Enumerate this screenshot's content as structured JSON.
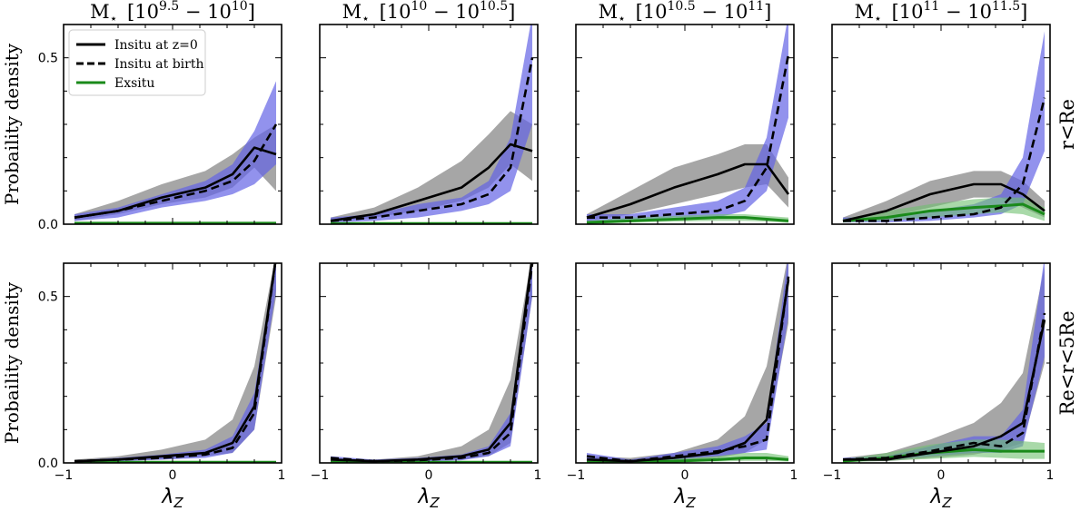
{
  "chart_data": {
    "type": "line",
    "xlabel": "λ",
    "xlabel_sub": "Z",
    "ylabel": "Probaility density",
    "xlim": [
      -1,
      1
    ],
    "ylim": [
      0,
      0.6
    ],
    "xticks": [
      -1,
      0,
      1
    ],
    "xtick_labels": [
      "−1",
      "0",
      "1"
    ],
    "yticks": [
      0,
      0.5
    ],
    "ytick_labels": [
      "0.0",
      "0.5"
    ],
    "columns": [
      {
        "title_base": "M",
        "title_sub": "⋆",
        "title_range": "[10",
        "lo_sup": "9.5",
        "dash": " − 10",
        "hi_sup": "10",
        "close": "]"
      },
      {
        "title_base": "M",
        "title_sub": "⋆",
        "title_range": "[10",
        "lo_sup": "10",
        "dash": " − 10",
        "hi_sup": "10.5",
        "close": "]"
      },
      {
        "title_base": "M",
        "title_sub": "⋆",
        "title_range": "[10",
        "lo_sup": "10.5",
        "dash": " − 10",
        "hi_sup": "11",
        "close": "]"
      },
      {
        "title_base": "M",
        "title_sub": "⋆",
        "title_range": "[10",
        "lo_sup": "11",
        "dash": " − 10",
        "hi_sup": "11.5",
        "close": "]"
      }
    ],
    "rows": [
      "r<Re",
      "Re<r<5Re"
    ],
    "legend": {
      "position": "upper-left",
      "entries": [
        {
          "label": "Insitu at z=0",
          "style": "solid",
          "color": "#000000"
        },
        {
          "label": "Insitu at birth",
          "style": "dashed",
          "color": "#000000"
        },
        {
          "label": "Exsitu",
          "style": "solid",
          "color": "#1a8a1a"
        }
      ]
    },
    "colors": {
      "insitu_z0": "#000000",
      "insitu_z0_band": "#808080",
      "birth_band": "#6464e6",
      "exsitu": "#1a8a1a",
      "exsitu_band": "#6fbf6f"
    },
    "x": [
      -0.9,
      -0.5,
      -0.1,
      0.3,
      0.55,
      0.75,
      0.95
    ],
    "panels": [
      {
        "row": 0,
        "col": 0,
        "insitu_z0": [
          0.02,
          0.04,
          0.08,
          0.11,
          0.15,
          0.23,
          0.21
        ],
        "insitu_z0_lo": [
          0.01,
          0.03,
          0.06,
          0.08,
          0.11,
          0.17,
          0.1
        ],
        "insitu_z0_hi": [
          0.03,
          0.07,
          0.12,
          0.16,
          0.21,
          0.26,
          0.3
        ],
        "insitu_birth": [
          0.02,
          0.04,
          0.07,
          0.1,
          0.13,
          0.19,
          0.3
        ],
        "birth_lo": [
          0.01,
          0.02,
          0.05,
          0.07,
          0.09,
          0.12,
          0.18
        ],
        "birth_hi": [
          0.03,
          0.05,
          0.09,
          0.13,
          0.18,
          0.28,
          0.43
        ],
        "exsitu": [
          0.003,
          0.003,
          0.003,
          0.003,
          0.003,
          0.003,
          0.003
        ],
        "exsitu_lo": [
          0.0,
          0.0,
          0.0,
          0.0,
          0.0,
          0.0,
          0.0
        ],
        "exsitu_hi": [
          0.006,
          0.006,
          0.006,
          0.006,
          0.006,
          0.006,
          0.006
        ]
      },
      {
        "row": 0,
        "col": 1,
        "insitu_z0": [
          0.01,
          0.03,
          0.07,
          0.11,
          0.17,
          0.24,
          0.22
        ],
        "insitu_z0_lo": [
          0.005,
          0.02,
          0.04,
          0.07,
          0.11,
          0.18,
          0.13
        ],
        "insitu_z0_hi": [
          0.02,
          0.05,
          0.11,
          0.19,
          0.27,
          0.34,
          0.3
        ],
        "insitu_birth": [
          0.01,
          0.02,
          0.04,
          0.06,
          0.09,
          0.17,
          0.5
        ],
        "birth_lo": [
          0.005,
          0.01,
          0.02,
          0.04,
          0.06,
          0.1,
          0.3
        ],
        "birth_hi": [
          0.02,
          0.03,
          0.06,
          0.08,
          0.13,
          0.26,
          0.66
        ],
        "exsitu": [
          0.002,
          0.002,
          0.002,
          0.002,
          0.002,
          0.002,
          0.002
        ],
        "exsitu_lo": [
          0.0,
          0.0,
          0.0,
          0.0,
          0.0,
          0.0,
          0.0
        ],
        "exsitu_hi": [
          0.004,
          0.004,
          0.004,
          0.004,
          0.004,
          0.004,
          0.004
        ]
      },
      {
        "row": 0,
        "col": 2,
        "insitu_z0": [
          0.02,
          0.06,
          0.11,
          0.15,
          0.18,
          0.18,
          0.09
        ],
        "insitu_z0_lo": [
          0.01,
          0.03,
          0.06,
          0.09,
          0.11,
          0.12,
          0.05
        ],
        "insitu_z0_hi": [
          0.03,
          0.1,
          0.17,
          0.21,
          0.24,
          0.24,
          0.14
        ],
        "insitu_birth": [
          0.02,
          0.02,
          0.03,
          0.04,
          0.07,
          0.17,
          0.51
        ],
        "birth_lo": [
          0.01,
          0.01,
          0.02,
          0.02,
          0.04,
          0.1,
          0.32
        ],
        "birth_hi": [
          0.03,
          0.03,
          0.05,
          0.07,
          0.11,
          0.26,
          0.66
        ],
        "exsitu": [
          0.005,
          0.01,
          0.015,
          0.02,
          0.02,
          0.015,
          0.01
        ],
        "exsitu_lo": [
          0.0,
          0.005,
          0.008,
          0.01,
          0.01,
          0.008,
          0.004
        ],
        "exsitu_hi": [
          0.01,
          0.02,
          0.025,
          0.03,
          0.03,
          0.025,
          0.02
        ]
      },
      {
        "row": 0,
        "col": 3,
        "insitu_z0": [
          0.01,
          0.04,
          0.09,
          0.12,
          0.12,
          0.09,
          0.04
        ],
        "insitu_z0_lo": [
          0.005,
          0.02,
          0.05,
          0.08,
          0.08,
          0.05,
          0.02
        ],
        "insitu_z0_hi": [
          0.02,
          0.07,
          0.13,
          0.16,
          0.16,
          0.13,
          0.07
        ],
        "insitu_birth": [
          0.01,
          0.01,
          0.02,
          0.03,
          0.05,
          0.12,
          0.38
        ],
        "birth_lo": [
          0.005,
          0.005,
          0.01,
          0.02,
          0.03,
          0.06,
          0.22
        ],
        "birth_hi": [
          0.02,
          0.02,
          0.04,
          0.06,
          0.09,
          0.2,
          0.58
        ],
        "exsitu": [
          0.01,
          0.02,
          0.04,
          0.05,
          0.055,
          0.06,
          0.03
        ],
        "exsitu_lo": [
          0.005,
          0.01,
          0.02,
          0.03,
          0.035,
          0.03,
          0.01
        ],
        "exsitu_hi": [
          0.015,
          0.04,
          0.06,
          0.075,
          0.08,
          0.08,
          0.05
        ]
      },
      {
        "row": 1,
        "col": 0,
        "insitu_z0": [
          0.005,
          0.01,
          0.02,
          0.03,
          0.06,
          0.17,
          0.62
        ],
        "insitu_z0_lo": [
          0.003,
          0.005,
          0.01,
          0.02,
          0.03,
          0.1,
          0.5
        ],
        "insitu_z0_hi": [
          0.01,
          0.02,
          0.04,
          0.07,
          0.13,
          0.29,
          0.7
        ],
        "insitu_birth": [
          0.005,
          0.01,
          0.015,
          0.025,
          0.045,
          0.15,
          0.62
        ],
        "birth_lo": [
          0.003,
          0.005,
          0.01,
          0.015,
          0.03,
          0.1,
          0.52
        ],
        "birth_hi": [
          0.008,
          0.015,
          0.025,
          0.04,
          0.08,
          0.21,
          0.7
        ],
        "exsitu": [
          0.002,
          0.002,
          0.002,
          0.002,
          0.002,
          0.002,
          0.002
        ],
        "exsitu_lo": [
          0.0,
          0.0,
          0.0,
          0.0,
          0.0,
          0.0,
          0.0
        ],
        "exsitu_hi": [
          0.005,
          0.005,
          0.005,
          0.005,
          0.005,
          0.005,
          0.005
        ]
      },
      {
        "row": 1,
        "col": 1,
        "insitu_z0": [
          0.01,
          0.005,
          0.01,
          0.02,
          0.04,
          0.12,
          0.62
        ],
        "insitu_z0_lo": [
          0.005,
          0.003,
          0.005,
          0.01,
          0.02,
          0.06,
          0.5
        ],
        "insitu_z0_hi": [
          0.015,
          0.01,
          0.02,
          0.05,
          0.1,
          0.25,
          0.7
        ],
        "insitu_birth": [
          0.015,
          0.005,
          0.008,
          0.015,
          0.03,
          0.09,
          0.6
        ],
        "birth_lo": [
          0.008,
          0.002,
          0.004,
          0.008,
          0.02,
          0.05,
          0.5
        ],
        "birth_hi": [
          0.02,
          0.01,
          0.015,
          0.025,
          0.05,
          0.15,
          0.7
        ],
        "exsitu": [
          0.002,
          0.002,
          0.002,
          0.002,
          0.002,
          0.002,
          0.002
        ],
        "exsitu_lo": [
          0.0,
          0.0,
          0.0,
          0.0,
          0.0,
          0.0,
          0.0
        ],
        "exsitu_hi": [
          0.004,
          0.004,
          0.004,
          0.004,
          0.004,
          0.004,
          0.004
        ]
      },
      {
        "row": 1,
        "col": 2,
        "insitu_z0": [
          0.01,
          0.005,
          0.015,
          0.03,
          0.06,
          0.13,
          0.55
        ],
        "insitu_z0_lo": [
          0.005,
          0.003,
          0.008,
          0.015,
          0.03,
          0.07,
          0.42
        ],
        "insitu_z0_hi": [
          0.02,
          0.015,
          0.03,
          0.07,
          0.14,
          0.29,
          0.7
        ],
        "insitu_birth": [
          0.02,
          0.005,
          0.02,
          0.035,
          0.05,
          0.07,
          0.56
        ],
        "birth_lo": [
          0.01,
          0.003,
          0.01,
          0.02,
          0.03,
          0.04,
          0.44
        ],
        "birth_hi": [
          0.03,
          0.01,
          0.03,
          0.05,
          0.08,
          0.12,
          0.7
        ],
        "exsitu": [
          0.002,
          0.003,
          0.005,
          0.01,
          0.015,
          0.015,
          0.01
        ],
        "exsitu_lo": [
          0.0,
          0.0,
          0.002,
          0.004,
          0.006,
          0.006,
          0.004
        ],
        "exsitu_hi": [
          0.005,
          0.008,
          0.012,
          0.02,
          0.03,
          0.03,
          0.02
        ]
      },
      {
        "row": 1,
        "col": 3,
        "insitu_z0": [
          0.01,
          0.01,
          0.03,
          0.05,
          0.08,
          0.12,
          0.43
        ],
        "insitu_z0_lo": [
          0.005,
          0.005,
          0.015,
          0.025,
          0.04,
          0.06,
          0.3
        ],
        "insitu_z0_hi": [
          0.015,
          0.03,
          0.07,
          0.12,
          0.18,
          0.27,
          0.59
        ],
        "insitu_birth": [
          0.01,
          0.015,
          0.035,
          0.06,
          0.05,
          0.09,
          0.45
        ],
        "birth_lo": [
          0.005,
          0.008,
          0.02,
          0.03,
          0.03,
          0.05,
          0.32
        ],
        "birth_hi": [
          0.015,
          0.02,
          0.05,
          0.08,
          0.08,
          0.16,
          0.62
        ],
        "exsitu": [
          0.005,
          0.015,
          0.03,
          0.04,
          0.035,
          0.035,
          0.035
        ],
        "exsitu_lo": [
          0.002,
          0.006,
          0.012,
          0.018,
          0.015,
          0.012,
          0.012
        ],
        "exsitu_hi": [
          0.01,
          0.03,
          0.055,
          0.07,
          0.07,
          0.065,
          0.06
        ]
      }
    ]
  }
}
